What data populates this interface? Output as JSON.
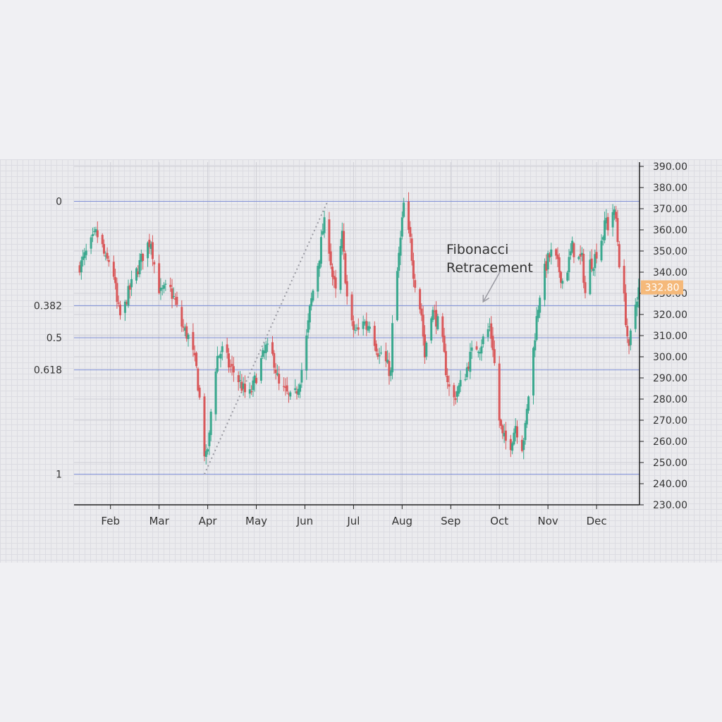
{
  "chart_data": {
    "type": "candlestick",
    "title": "",
    "xlabel": "",
    "ylabel": "",
    "ylim": [
      230,
      392
    ],
    "y_ticks": [
      230,
      240,
      250,
      260,
      270,
      280,
      290,
      300,
      310,
      320,
      330,
      340,
      350,
      360,
      370,
      380,
      390
    ],
    "y_tick_labels": [
      "230.00",
      "240.00",
      "250.00",
      "260.00",
      "270.00",
      "280.00",
      "290.00",
      "300.00",
      "310.00",
      "320.00",
      "330.00",
      "340.00",
      "350.00",
      "360.00",
      "370.00",
      "380.00",
      "390.00"
    ],
    "x_range": [
      10.5,
      359.5
    ],
    "x_ticks": [
      {
        "day": 33,
        "label": "Feb"
      },
      {
        "day": 63,
        "label": "Mar"
      },
      {
        "day": 93,
        "label": "Apr"
      },
      {
        "day": 123,
        "label": "May"
      },
      {
        "day": 153,
        "label": "Jun"
      },
      {
        "day": 183,
        "label": "Jul"
      },
      {
        "day": 213,
        "label": "Aug"
      },
      {
        "day": 243,
        "label": "Sep"
      },
      {
        "day": 273,
        "label": "Oct"
      },
      {
        "day": 303,
        "label": "Nov"
      },
      {
        "day": 333,
        "label": "Dec"
      }
    ],
    "grid": true,
    "last_price": 332.8,
    "last_price_label": "332.80",
    "last_price_color": "#f5b97a",
    "up_color": "#3aa88e",
    "down_color": "#d9585a",
    "fibonacci": {
      "swing_low": 244.5,
      "swing_high": 373.5,
      "swing_low_day": 91,
      "swing_high_day": 167,
      "levels": [
        {
          "ratio": 0,
          "label": "0",
          "price": 373.5
        },
        {
          "ratio": 0.382,
          "label": "0.382",
          "price": 324.2
        },
        {
          "ratio": 0.5,
          "label": "0.5",
          "price": 309.0
        },
        {
          "ratio": 0.618,
          "label": "0.618",
          "price": 293.8
        },
        {
          "ratio": 1,
          "label": "1",
          "price": 244.5
        }
      ],
      "level_color": "#7d8ed6"
    },
    "annotation": {
      "lines": [
        "Fibonacci",
        "Retracement"
      ],
      "arrow_from_day": 274,
      "arrow_from_price": 341,
      "arrow_to_day": 263,
      "arrow_to_price": 326
    },
    "anchors": [
      [
        12,
        342
      ],
      [
        15,
        344
      ],
      [
        20,
        352
      ],
      [
        24,
        358
      ],
      [
        27,
        355
      ],
      [
        30,
        345
      ],
      [
        34,
        346
      ],
      [
        37,
        325
      ],
      [
        40,
        316
      ],
      [
        43,
        328
      ],
      [
        47,
        336
      ],
      [
        51,
        344
      ],
      [
        55,
        352
      ],
      [
        58,
        355
      ],
      [
        61,
        338
      ],
      [
        64,
        330
      ],
      [
        69,
        333
      ],
      [
        73,
        326
      ],
      [
        76,
        316
      ],
      [
        82,
        308
      ],
      [
        86,
        294
      ],
      [
        88,
        280
      ],
      [
        90,
        258
      ],
      [
        92,
        252
      ],
      [
        94,
        262
      ],
      [
        96,
        286
      ],
      [
        99,
        300
      ],
      [
        103,
        304
      ],
      [
        106,
        296
      ],
      [
        110,
        292
      ],
      [
        114,
        286
      ],
      [
        118,
        280
      ],
      [
        121,
        286
      ],
      [
        125,
        296
      ],
      [
        129,
        304
      ],
      [
        133,
        300
      ],
      [
        134,
        298
      ],
      [
        137,
        286
      ],
      [
        140,
        284
      ],
      [
        144,
        280
      ],
      [
        147,
        282
      ],
      [
        150,
        290
      ],
      [
        153,
        302
      ],
      [
        156,
        322
      ],
      [
        159,
        336
      ],
      [
        162,
        348
      ],
      [
        164,
        360
      ],
      [
        166,
        365
      ],
      [
        168,
        352
      ],
      [
        170,
        338
      ],
      [
        172,
        330
      ],
      [
        174,
        345
      ],
      [
        176,
        357
      ],
      [
        178,
        338
      ],
      [
        180,
        318
      ],
      [
        183,
        313
      ],
      [
        186,
        312
      ],
      [
        189,
        318
      ],
      [
        191,
        314
      ],
      [
        194,
        318
      ],
      [
        196,
        308
      ],
      [
        199,
        300
      ],
      [
        201,
        304
      ],
      [
        203,
        297
      ],
      [
        206,
        292
      ],
      [
        208,
        336
      ],
      [
        210,
        340
      ],
      [
        212,
        355
      ],
      [
        214,
        372
      ],
      [
        216,
        360
      ],
      [
        218,
        355
      ],
      [
        220,
        340
      ],
      [
        222,
        331
      ],
      [
        225,
        320
      ],
      [
        227,
        300
      ],
      [
        230,
        322
      ],
      [
        232,
        321
      ],
      [
        235,
        316
      ],
      [
        238,
        306
      ],
      [
        240,
        294
      ],
      [
        242,
        285
      ],
      [
        245,
        280
      ],
      [
        247,
        284
      ],
      [
        250,
        288
      ],
      [
        252,
        292
      ],
      [
        255,
        300
      ],
      [
        258,
        305
      ],
      [
        261,
        305
      ],
      [
        264,
        310
      ],
      [
        267,
        314
      ],
      [
        269,
        305
      ],
      [
        271,
        288
      ],
      [
        273,
        270
      ],
      [
        275,
        262
      ],
      [
        277,
        260
      ],
      [
        279,
        256
      ],
      [
        281,
        262
      ],
      [
        283,
        268
      ],
      [
        285,
        262
      ],
      [
        287,
        258
      ],
      [
        289,
        266
      ],
      [
        291,
        282
      ],
      [
        293,
        296
      ],
      [
        296,
        318
      ],
      [
        298,
        330
      ],
      [
        300,
        338
      ],
      [
        303,
        346
      ],
      [
        306,
        350
      ],
      [
        309,
        343
      ],
      [
        312,
        336
      ],
      [
        315,
        342
      ],
      [
        318,
        352
      ],
      [
        321,
        346
      ],
      [
        324,
        346
      ],
      [
        326,
        330
      ],
      [
        328,
        344
      ],
      [
        331,
        345
      ],
      [
        334,
        352
      ],
      [
        337,
        358
      ],
      [
        339,
        365
      ],
      [
        341,
        358
      ],
      [
        343,
        369
      ],
      [
        345,
        365
      ],
      [
        347,
        345
      ],
      [
        349,
        336
      ],
      [
        351,
        318
      ],
      [
        353,
        302
      ],
      [
        355,
        318
      ],
      [
        357,
        325
      ],
      [
        359,
        333
      ]
    ]
  }
}
